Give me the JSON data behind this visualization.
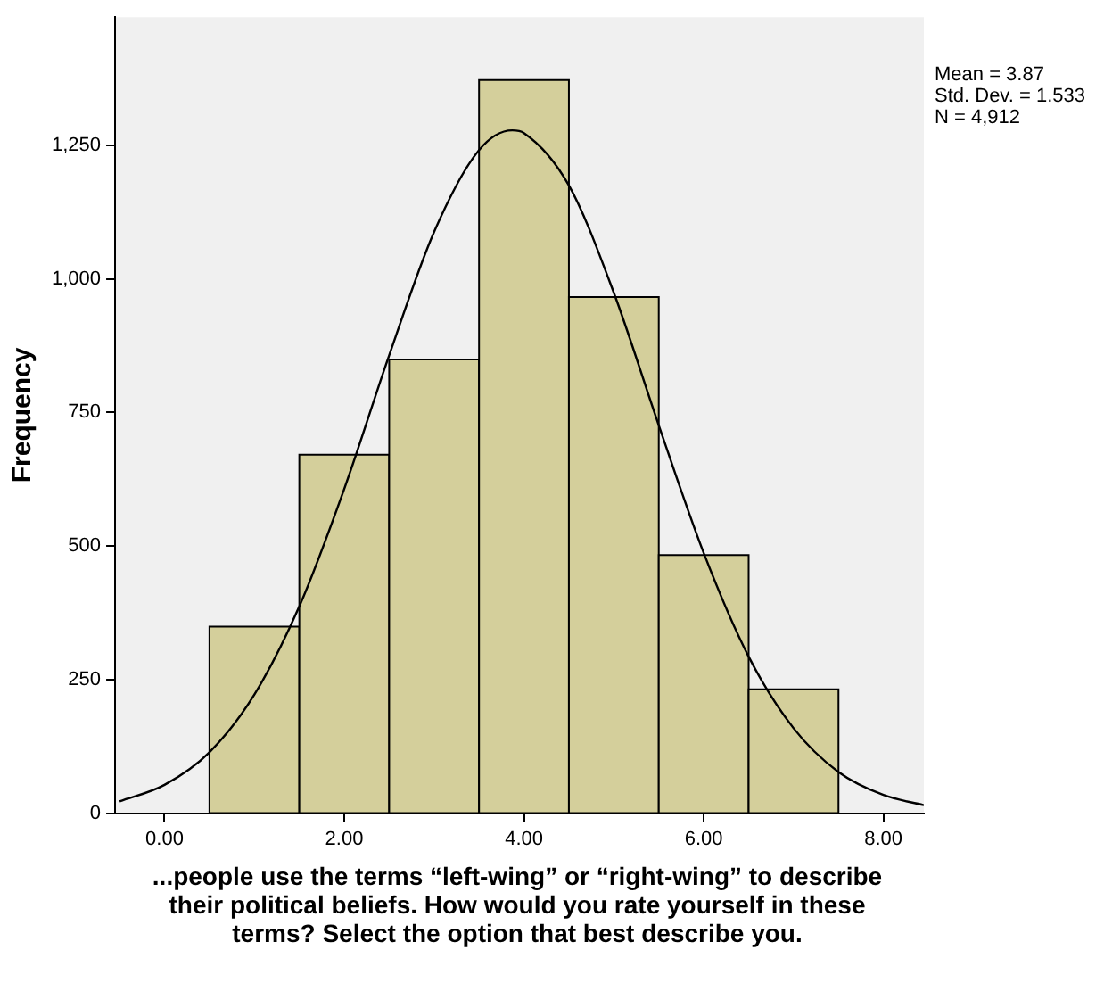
{
  "chart_data": {
    "type": "histogram",
    "xlabel": "...people use the terms “left-wing” or “right-wing” to describe their political beliefs. How would you rate yourself in these terms? Select the option that best describe you.",
    "ylabel": "Frequency",
    "bins": [
      0.5,
      1.5,
      2.5,
      3.5,
      4.5,
      5.5,
      6.5,
      7.5
    ],
    "values": [
      349,
      671,
      849,
      1372,
      966,
      483,
      232
    ],
    "color": "#d4cf9b",
    "series": [
      {
        "type": "line",
        "color": "#000000",
        "x": [
          -0.5,
          0,
          0.5,
          1,
          1.5,
          2,
          2.5,
          3,
          3.5,
          3.87,
          4,
          4.5,
          5,
          5.5,
          6,
          6.5,
          7,
          7.5,
          8,
          8.45
        ],
        "values": [
          22,
          53,
          114,
          222,
          387,
          607,
          857,
          1088,
          1241,
          1278,
          1273,
          1175,
          974,
          726,
          487,
          293,
          159,
          77,
          34,
          15
        ]
      }
    ],
    "xlim": [
      -0.55,
      8.45
    ],
    "xticks": [
      {
        "value": 0,
        "label": "0.00"
      },
      {
        "value": 2,
        "label": "2.00"
      },
      {
        "value": 4,
        "label": "4.00"
      },
      {
        "value": 6,
        "label": "6.00"
      },
      {
        "value": 8,
        "label": "8.00"
      }
    ],
    "ylim": [
      0,
      1490
    ],
    "yticks": [
      0,
      250,
      500,
      750,
      {
        "value": 1000,
        "label": "1,000"
      },
      {
        "value": 1250,
        "label": "1,250"
      }
    ],
    "grid": false,
    "legend": false,
    "annotations": [
      "Mean = 3.87",
      "Std. Dev. = 1.533",
      "N = 4,912"
    ]
  }
}
